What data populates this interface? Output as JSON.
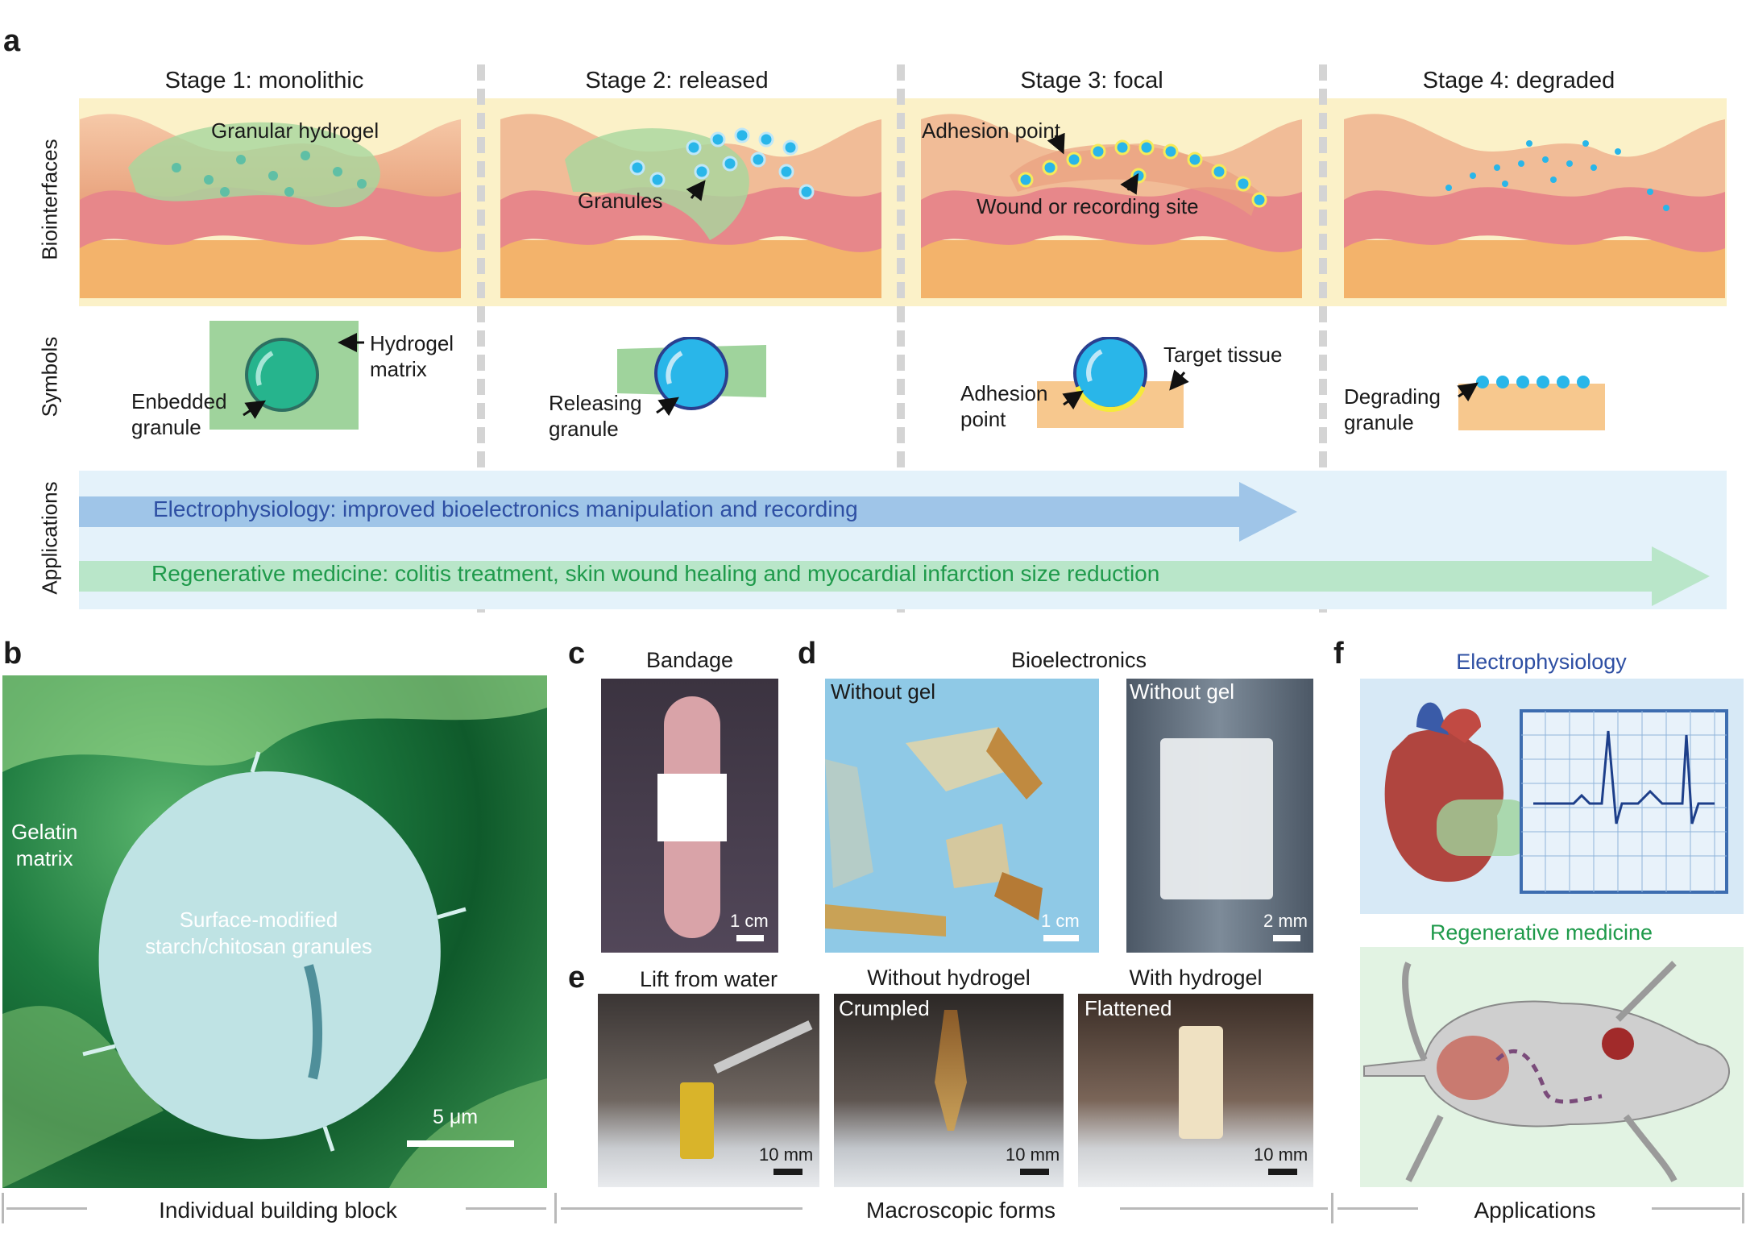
{
  "panel_a": {
    "letter": "a",
    "stages": [
      "Stage 1: monolithic",
      "Stage 2: released",
      "Stage 3: focal",
      "Stage 4: degraded"
    ],
    "row_labels": [
      "Biointerfaces",
      "Symbols",
      "Applications"
    ],
    "biointerface_labels": {
      "granular_hydrogel": "Granular hydrogel",
      "granules": "Granules",
      "adhesion_point": "Adhesion point",
      "wound_site": "Wound or recording site"
    },
    "symbol_labels": {
      "hydrogel_matrix": "Hydrogel\nmatrix",
      "embedded_granule": "Enbedded\ngranule",
      "releasing_granule": "Releasing\ngranule",
      "adhesion_point": "Adhesion\npoint",
      "target_tissue": "Target tissue",
      "degrading_granule": "Degrading\ngranule"
    },
    "applications": {
      "electrophysiology": "Electrophysiology: improved bioelectronics manipulation and recording",
      "regenerative": "Regenerative medicine: colitis treatment, skin wound healing and myocardial infarction size reduction"
    },
    "colors": {
      "electro_arrow": "#9fc5e8",
      "electro_text": "#2e4fa3",
      "regen_arrow": "#b9e6c9",
      "regen_text": "#1f9a4b",
      "app_bg": "#e4f2fa",
      "granule": "#29b6e9",
      "hydrogel": "#9fd39c",
      "tissue": "#f7c88e"
    }
  },
  "panel_b": {
    "letter": "b",
    "matrix_label": "Gelatin\nmatrix",
    "granule_label": "Surface-modified\nstarch/chitosan granules",
    "scale": "5 μm"
  },
  "panel_c": {
    "letter": "c",
    "title": "Bandage",
    "scale": "1 cm"
  },
  "panel_d": {
    "letter": "d",
    "title": "Bioelectronics",
    "left_overlay": "Without gel",
    "left_scale": "1 cm",
    "right_overlay": "Without gel",
    "right_scale": "2 mm"
  },
  "panel_e": {
    "letter": "e",
    "photos": [
      {
        "title": "Lift from water",
        "overlay": "",
        "scale": "10 mm"
      },
      {
        "title": "Without hydrogel",
        "overlay": "Crumpled",
        "scale": "10 mm"
      },
      {
        "title": "With hydrogel",
        "overlay": "Flattened",
        "scale": "10 mm"
      }
    ]
  },
  "panel_f": {
    "letter": "f",
    "electro_title": "Electrophysiology",
    "regen_title": "Regenerative medicine"
  },
  "footer": {
    "building_block": "Individual building block",
    "macroscopic": "Macroscopic forms",
    "applications": "Applications"
  }
}
